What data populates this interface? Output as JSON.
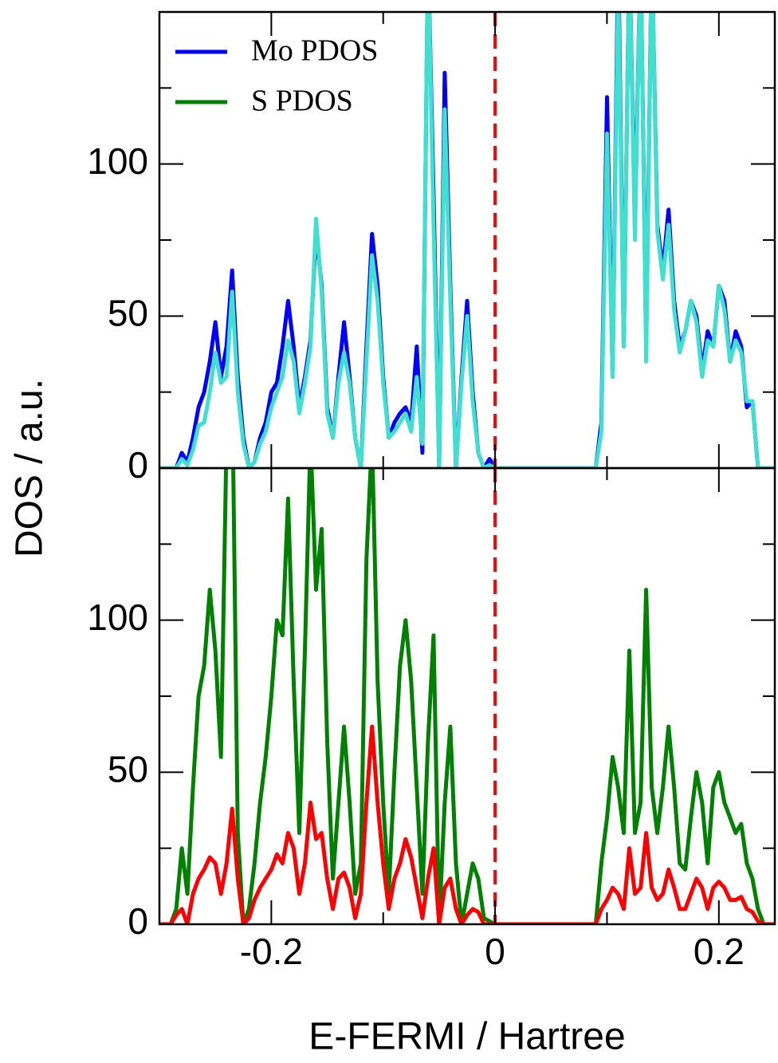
{
  "chart_data": [
    {
      "type": "line",
      "ylabel": "DOS / a.u.",
      "legend": "upper left",
      "xtick_labels": false,
      "xlim": [
        -0.3,
        0.25
      ],
      "xticks": [
        -0.2,
        0,
        0.2
      ],
      "xticks_minor": [
        -0.1,
        0.1
      ],
      "ylim": [
        0,
        150
      ],
      "yticks": [
        0,
        50,
        100
      ],
      "yticks_minor": [
        25,
        75,
        125
      ],
      "vline": {
        "x": 0,
        "color": "#ff0000"
      },
      "x": [
        -0.3,
        -0.295,
        -0.29,
        -0.285,
        -0.28,
        -0.275,
        -0.27,
        -0.265,
        -0.26,
        -0.255,
        -0.25,
        -0.245,
        -0.24,
        -0.235,
        -0.23,
        -0.225,
        -0.22,
        -0.215,
        -0.21,
        -0.205,
        -0.2,
        -0.195,
        -0.19,
        -0.185,
        -0.18,
        -0.175,
        -0.17,
        -0.165,
        -0.16,
        -0.155,
        -0.15,
        -0.145,
        -0.14,
        -0.135,
        -0.13,
        -0.125,
        -0.12,
        -0.115,
        -0.11,
        -0.105,
        -0.1,
        -0.095,
        -0.09,
        -0.085,
        -0.08,
        -0.075,
        -0.07,
        -0.065,
        -0.06,
        -0.055,
        -0.05,
        -0.045,
        -0.04,
        -0.035,
        -0.03,
        -0.025,
        -0.02,
        -0.015,
        -0.01,
        -0.005,
        0,
        0.005,
        0.01,
        0.015,
        0.02,
        0.025,
        0.03,
        0.035,
        0.04,
        0.045,
        0.05,
        0.055,
        0.06,
        0.065,
        0.07,
        0.075,
        0.08,
        0.085,
        0.09,
        0.095,
        0.1,
        0.105,
        0.11,
        0.115,
        0.12,
        0.125,
        0.13,
        0.135,
        0.14,
        0.145,
        0.15,
        0.155,
        0.16,
        0.165,
        0.17,
        0.175,
        0.18,
        0.185,
        0.19,
        0.195,
        0.2,
        0.205,
        0.21,
        0.215,
        0.22,
        0.225,
        0.23,
        0.235,
        0.24,
        0.245,
        0.25
      ],
      "series": [
        {
          "name": "Mo PDOS",
          "color": "#0000ff",
          "values": [
            0,
            0,
            0,
            0,
            5,
            2,
            10,
            20,
            25,
            35,
            48,
            30,
            40,
            65,
            30,
            10,
            0,
            2,
            10,
            15,
            25,
            28,
            40,
            55,
            40,
            20,
            30,
            42,
            78,
            60,
            20,
            10,
            30,
            48,
            30,
            10,
            0,
            40,
            77,
            60,
            30,
            10,
            15,
            18,
            20,
            15,
            40,
            5,
            170,
            90,
            0,
            130,
            60,
            0,
            30,
            55,
            25,
            5,
            0,
            3,
            0,
            0,
            0,
            0,
            0,
            0,
            0,
            0,
            0,
            0,
            0,
            0,
            0,
            0,
            0,
            0,
            0,
            0,
            0,
            15,
            122,
            30,
            170,
            40,
            170,
            80,
            170,
            40,
            170,
            80,
            65,
            85,
            55,
            40,
            45,
            55,
            50,
            32,
            45,
            40,
            60,
            55,
            35,
            45,
            40,
            20,
            22,
            0,
            0,
            0,
            0
          ]
        },
        {
          "color": "#40e0d0",
          "values": [
            0,
            0,
            0,
            0,
            3,
            1,
            6,
            14,
            15,
            25,
            38,
            28,
            30,
            58,
            25,
            8,
            0,
            2,
            8,
            12,
            20,
            25,
            30,
            42,
            35,
            18,
            28,
            40,
            82,
            58,
            18,
            10,
            28,
            38,
            28,
            10,
            0,
            35,
            70,
            55,
            28,
            10,
            12,
            15,
            18,
            12,
            30,
            8,
            170,
            80,
            0,
            118,
            55,
            0,
            28,
            50,
            22,
            5,
            0,
            1,
            0,
            0,
            0,
            0,
            0,
            0,
            0,
            0,
            0,
            0,
            0,
            0,
            0,
            0,
            0,
            0,
            0,
            0,
            0,
            12,
            110,
            30,
            160,
            40,
            170,
            75,
            170,
            35,
            170,
            78,
            62,
            80,
            52,
            38,
            45,
            55,
            48,
            30,
            42,
            40,
            60,
            52,
            35,
            42,
            38,
            22,
            22,
            0,
            0,
            0,
            0
          ]
        }
      ]
    },
    {
      "type": "line",
      "xlabel": "E-FERMI / Hartree",
      "xlim": [
        -0.3,
        0.25
      ],
      "xticks": [
        -0.2,
        0,
        0.2
      ],
      "xticks_minor": [
        -0.1,
        0.1
      ],
      "ylim": [
        0,
        150
      ],
      "yticks": [
        0,
        50,
        100
      ],
      "yticks_minor": [
        25,
        75,
        125
      ],
      "vline": {
        "x": 0,
        "color": "#ff0000"
      },
      "x": [
        -0.3,
        -0.295,
        -0.29,
        -0.285,
        -0.28,
        -0.275,
        -0.27,
        -0.265,
        -0.26,
        -0.255,
        -0.25,
        -0.245,
        -0.24,
        -0.235,
        -0.23,
        -0.225,
        -0.22,
        -0.215,
        -0.21,
        -0.205,
        -0.2,
        -0.195,
        -0.19,
        -0.185,
        -0.18,
        -0.175,
        -0.17,
        -0.165,
        -0.16,
        -0.155,
        -0.15,
        -0.145,
        -0.14,
        -0.135,
        -0.13,
        -0.125,
        -0.12,
        -0.115,
        -0.11,
        -0.105,
        -0.1,
        -0.095,
        -0.09,
        -0.085,
        -0.08,
        -0.075,
        -0.07,
        -0.065,
        -0.06,
        -0.055,
        -0.05,
        -0.045,
        -0.04,
        -0.035,
        -0.03,
        -0.025,
        -0.02,
        -0.015,
        -0.01,
        -0.005,
        0,
        0.005,
        0.01,
        0.015,
        0.02,
        0.025,
        0.03,
        0.035,
        0.04,
        0.045,
        0.05,
        0.055,
        0.06,
        0.065,
        0.07,
        0.075,
        0.08,
        0.085,
        0.09,
        0.095,
        0.1,
        0.105,
        0.11,
        0.115,
        0.12,
        0.125,
        0.13,
        0.135,
        0.14,
        0.145,
        0.15,
        0.155,
        0.16,
        0.165,
        0.17,
        0.175,
        0.18,
        0.185,
        0.19,
        0.195,
        0.2,
        0.205,
        0.21,
        0.215,
        0.22,
        0.225,
        0.23,
        0.235,
        0.24,
        0.245,
        0.25
      ],
      "series": [
        {
          "name": "S PDOS",
          "color": "#008000",
          "values": [
            0,
            0,
            0,
            5,
            25,
            10,
            45,
            75,
            85,
            110,
            90,
            55,
            160,
            180,
            30,
            0,
            5,
            20,
            40,
            55,
            75,
            100,
            95,
            140,
            80,
            30,
            90,
            160,
            110,
            130,
            60,
            15,
            40,
            65,
            40,
            10,
            20,
            120,
            160,
            80,
            40,
            10,
            50,
            85,
            100,
            80,
            45,
            10,
            60,
            95,
            0,
            40,
            65,
            20,
            0,
            10,
            20,
            15,
            2,
            1,
            0,
            0,
            0,
            0,
            0,
            0,
            0,
            0,
            0,
            0,
            0,
            0,
            0,
            0,
            0,
            0,
            0,
            0,
            0,
            20,
            35,
            55,
            45,
            30,
            90,
            30,
            40,
            110,
            45,
            30,
            45,
            65,
            45,
            20,
            18,
            35,
            50,
            40,
            20,
            45,
            50,
            40,
            35,
            30,
            33,
            20,
            15,
            5,
            0,
            0,
            0
          ]
        },
        {
          "color": "#ff0000",
          "values": [
            0,
            0,
            0,
            3,
            5,
            0,
            10,
            15,
            18,
            22,
            20,
            10,
            20,
            38,
            15,
            0,
            2,
            8,
            12,
            15,
            18,
            23,
            20,
            30,
            25,
            10,
            20,
            40,
            28,
            30,
            15,
            5,
            15,
            17,
            12,
            2,
            10,
            40,
            65,
            40,
            20,
            5,
            15,
            20,
            28,
            22,
            12,
            2,
            15,
            25,
            0,
            12,
            15,
            5,
            0,
            3,
            5,
            4,
            0,
            0,
            0,
            0,
            0,
            0,
            0,
            0,
            0,
            0,
            0,
            0,
            0,
            0,
            0,
            0,
            0,
            0,
            0,
            0,
            0,
            5,
            8,
            12,
            10,
            5,
            25,
            10,
            12,
            30,
            12,
            8,
            10,
            18,
            12,
            5,
            5,
            10,
            15,
            12,
            5,
            12,
            14,
            12,
            8,
            8,
            9,
            5,
            4,
            1,
            0,
            0,
            0
          ]
        }
      ]
    }
  ]
}
